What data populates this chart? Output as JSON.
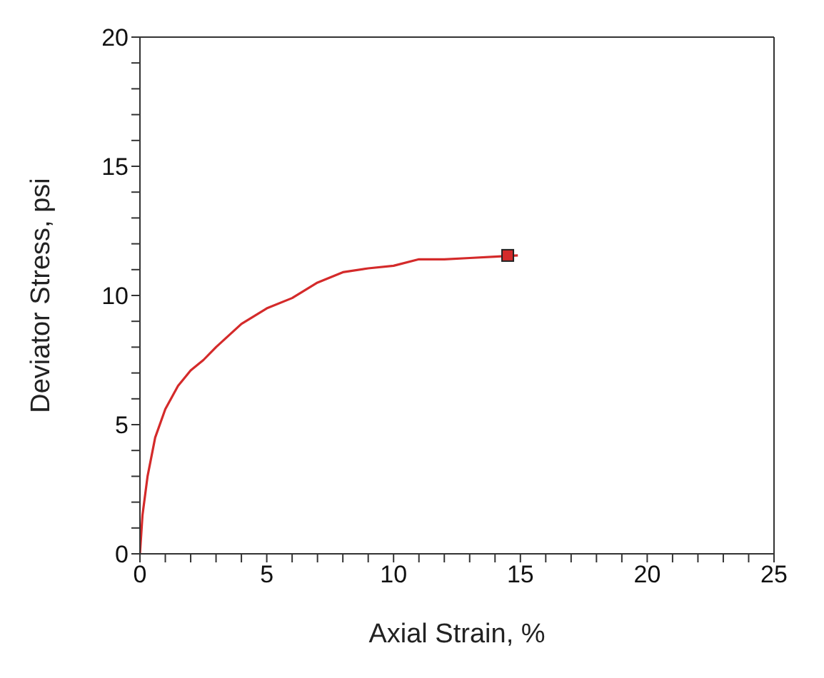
{
  "chart_data": {
    "type": "line",
    "xlabel": "Axial Strain, %",
    "ylabel": "Deviator Stress, psi",
    "xlim": [
      0,
      25
    ],
    "ylim": [
      0,
      20
    ],
    "xticks": [
      0,
      {
        "value": 1,
        "label": null
      },
      {
        "value": 2,
        "label": null
      },
      {
        "value": 3,
        "label": null
      },
      {
        "value": 4,
        "label": null
      },
      5,
      {
        "value": 6,
        "label": null
      },
      {
        "value": 7,
        "label": null
      },
      {
        "value": 8,
        "label": null
      },
      {
        "value": 9,
        "label": null
      },
      10,
      {
        "value": 11,
        "label": null
      },
      {
        "value": 12,
        "label": null
      },
      {
        "value": 13,
        "label": null
      },
      {
        "value": 14,
        "label": null
      },
      15,
      {
        "value": 16,
        "label": null
      },
      {
        "value": 17,
        "label": null
      },
      {
        "value": 18,
        "label": null
      },
      {
        "value": 19,
        "label": null
      },
      20,
      {
        "value": 21,
        "label": null
      },
      {
        "value": 22,
        "label": null
      },
      {
        "value": 23,
        "label": null
      },
      {
        "value": 24,
        "label": null
      },
      25
    ],
    "yticks": [
      0,
      {
        "value": 1,
        "label": null
      },
      {
        "value": 2,
        "label": null
      },
      {
        "value": 3,
        "label": null
      },
      {
        "value": 4,
        "label": null
      },
      5,
      {
        "value": 6,
        "label": null
      },
      {
        "value": 7,
        "label": null
      },
      {
        "value": 8,
        "label": null
      },
      {
        "value": 9,
        "label": null
      },
      10,
      {
        "value": 11,
        "label": null
      },
      {
        "value": 12,
        "label": null
      },
      {
        "value": 13,
        "label": null
      },
      {
        "value": 14,
        "label": null
      },
      15,
      {
        "value": 16,
        "label": null
      },
      {
        "value": 17,
        "label": null
      },
      {
        "value": 18,
        "label": null
      },
      {
        "value": 19,
        "label": null
      },
      20
    ],
    "series": [
      {
        "color": "#d42a2a",
        "marker": "none",
        "x": [
          0,
          0.1,
          0.3,
          0.6,
          1,
          1.5,
          2,
          2.5,
          3,
          4,
          5,
          6,
          7,
          8,
          9,
          10,
          11,
          12,
          13,
          14,
          14.9
        ],
        "values": [
          0,
          1.5,
          3,
          4.5,
          5.6,
          6.5,
          7.1,
          7.5,
          8,
          8.9,
          9.5,
          9.9,
          10.5,
          10.9,
          11.05,
          11.15,
          11.4,
          11.4,
          11.45,
          11.5,
          11.55
        ]
      },
      {
        "type": "scatter",
        "color": "#d42a2a",
        "marker": "square",
        "x": [
          14.5
        ],
        "values": [
          11.55
        ]
      }
    ]
  }
}
